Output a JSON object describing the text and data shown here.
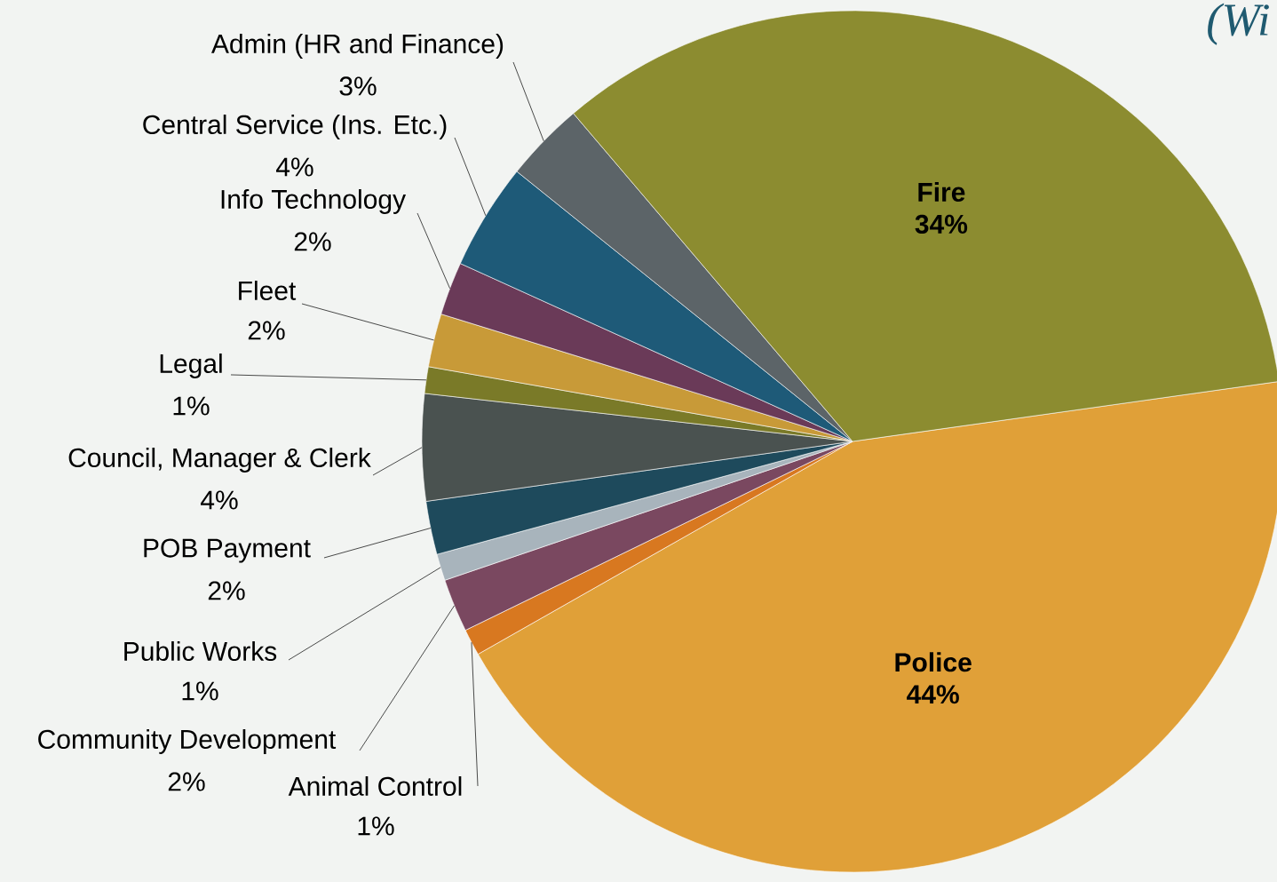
{
  "chart_data": {
    "type": "pie",
    "categories": [
      "Police",
      "Animal Control",
      "Community Development",
      "Public Works",
      "POB Payment",
      "Council, Manager & Clerk",
      "Legal",
      "Fleet",
      "Info Technology",
      "Central Service (Ins. Etc.)",
      "Admin (HR and Finance)",
      "Fire"
    ],
    "values": [
      44,
      1,
      2,
      1,
      2,
      4,
      1,
      2,
      2,
      4,
      3,
      34
    ],
    "value_labels": [
      "44%",
      "1%",
      "2%",
      "1%",
      "2%",
      "4%",
      "1%",
      "2%",
      "2%",
      "4%",
      "3%",
      "34%"
    ],
    "colors": [
      "#e0a038",
      "#d87820",
      "#7a4860",
      "#a8b4bc",
      "#1e4a5c",
      "#4a5250",
      "#7a7a28",
      "#c89a38",
      "#6a3a58",
      "#1e5a78",
      "#5c6468",
      "#8c8c30"
    ],
    "annotations": [
      "(Wi"
    ]
  }
}
